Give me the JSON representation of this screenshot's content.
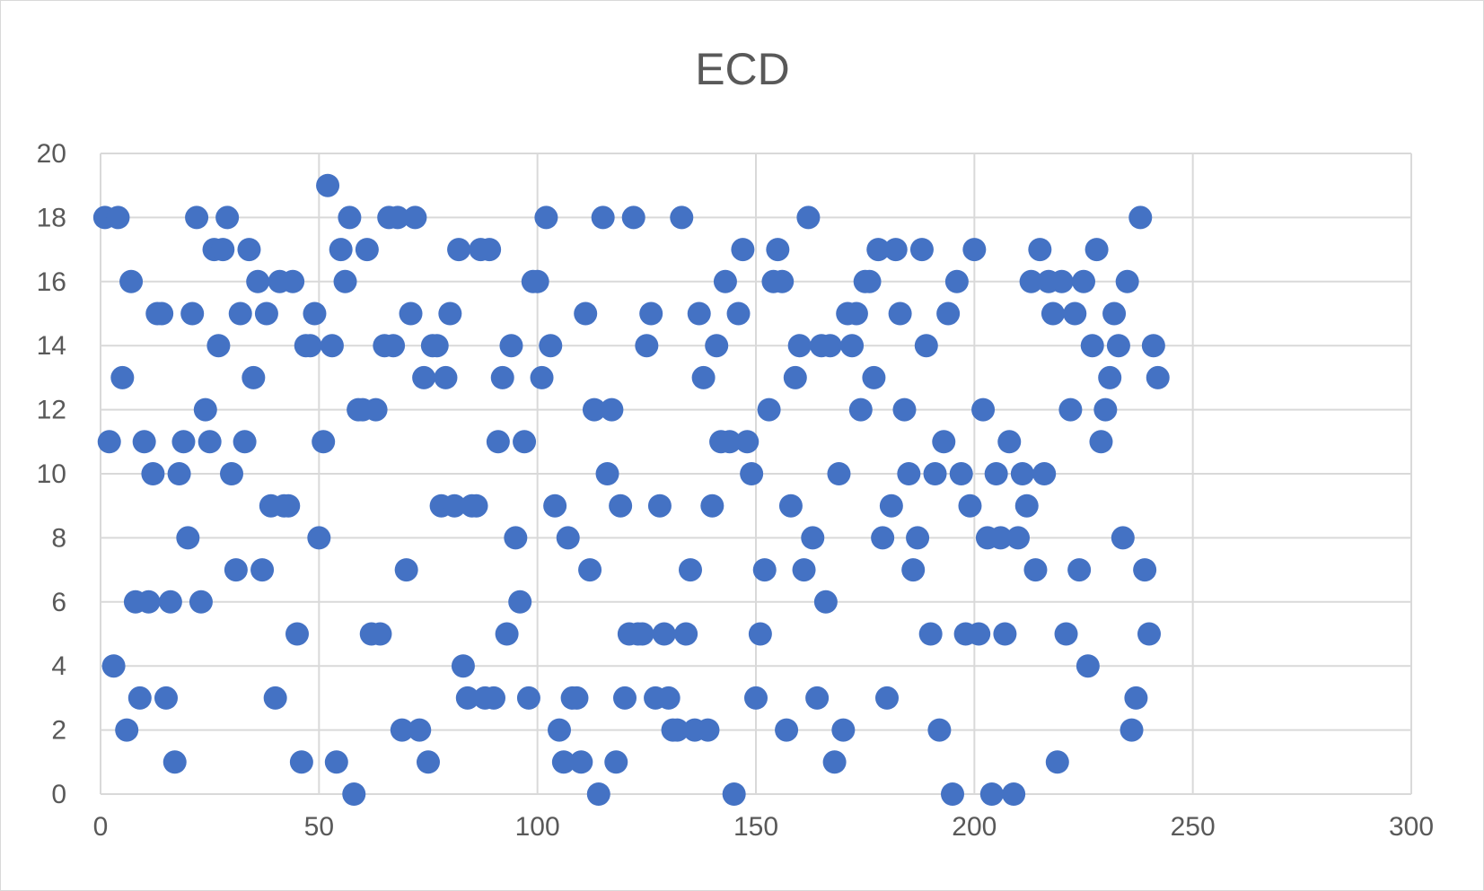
{
  "chart_data": {
    "type": "scatter",
    "title": "ECD",
    "xlabel": "",
    "ylabel": "",
    "xlim": [
      0,
      300
    ],
    "ylim": [
      0,
      20
    ],
    "x_ticks": [
      "0",
      "50",
      "100",
      "150",
      "200",
      "250",
      "300"
    ],
    "y_ticks": [
      "0",
      "2",
      "4",
      "6",
      "8",
      "10",
      "12",
      "14",
      "16",
      "18",
      "20"
    ],
    "grid": true,
    "legend": "none",
    "marker_color": "#4472c4",
    "series": [
      {
        "x": [
          1,
          2,
          3,
          4,
          5,
          6,
          7,
          8,
          9,
          10,
          11,
          12,
          13,
          14,
          15,
          16,
          17,
          18,
          19,
          20,
          21,
          22,
          23,
          24,
          25,
          26,
          27,
          28,
          29,
          30,
          31,
          32,
          33,
          34,
          35,
          36,
          37,
          38,
          39,
          40,
          41,
          42,
          43,
          44,
          45,
          46,
          47,
          48,
          49,
          50,
          51,
          52,
          53,
          54,
          55,
          56,
          57,
          58,
          59,
          60,
          61,
          62,
          63,
          64,
          65,
          66,
          67,
          68,
          69,
          70,
          71,
          72,
          73,
          74,
          75,
          76,
          77,
          78,
          79,
          80,
          81,
          82,
          83,
          84,
          85,
          86,
          87,
          88,
          89,
          90,
          91,
          92,
          93,
          94,
          95,
          96,
          97,
          98,
          99,
          100,
          101,
          102,
          103,
          104,
          105,
          106,
          107,
          108,
          109,
          110,
          111,
          112,
          113,
          114,
          115,
          116,
          117,
          118,
          119,
          120,
          121,
          122,
          123,
          124,
          125,
          126,
          127,
          128,
          129,
          130,
          131,
          132,
          133,
          134,
          135,
          136,
          137,
          138,
          139,
          140,
          141,
          142,
          143,
          144,
          145,
          146,
          147,
          148,
          149,
          150,
          151,
          152,
          153,
          154,
          155,
          156,
          157,
          158,
          159,
          160,
          161,
          162,
          163,
          164,
          165,
          166,
          167,
          168,
          169,
          170,
          171,
          172,
          173,
          174,
          175,
          176,
          177,
          178,
          179,
          180,
          181,
          182,
          183,
          184,
          185,
          186,
          187,
          188,
          189,
          190,
          191,
          192,
          193,
          194,
          195,
          196,
          197,
          198,
          199,
          200,
          201,
          202,
          203,
          204,
          205,
          206,
          207,
          208,
          209,
          210,
          211,
          212,
          213,
          214,
          215,
          216,
          217,
          218,
          219,
          220,
          221,
          222,
          223,
          224,
          225,
          226,
          227,
          228,
          229,
          230,
          231,
          232,
          233,
          234,
          235,
          236,
          237,
          238,
          239,
          240,
          241,
          242
        ],
        "y": [
          18,
          11,
          4,
          18,
          13,
          2,
          16,
          6,
          3,
          11,
          6,
          10,
          15,
          15,
          3,
          6,
          1,
          10,
          11,
          8,
          15,
          18,
          6,
          12,
          11,
          17,
          14,
          17,
          18,
          10,
          7,
          15,
          11,
          17,
          13,
          16,
          7,
          15,
          9,
          3,
          16,
          9,
          9,
          16,
          5,
          1,
          14,
          14,
          15,
          8,
          11,
          19,
          14,
          1,
          17,
          16,
          18,
          0,
          12,
          12,
          17,
          5,
          12,
          5,
          14,
          18,
          14,
          18,
          2,
          7,
          15,
          18,
          2,
          13,
          1,
          14,
          14,
          9,
          13,
          15,
          9,
          17,
          4,
          3,
          9,
          9,
          17,
          3,
          17,
          3,
          11,
          13,
          5,
          14,
          8,
          6,
          11,
          3,
          16,
          16,
          13,
          18,
          14,
          9,
          2,
          1,
          8,
          3,
          3,
          1,
          15,
          7,
          12,
          0,
          18,
          10,
          12,
          1,
          9,
          3,
          5,
          18,
          5,
          5,
          14,
          15,
          3,
          9,
          5,
          3,
          2,
          2,
          18,
          5,
          7,
          2,
          15,
          13,
          2,
          9,
          14,
          11,
          16,
          11,
          0,
          15,
          17,
          11,
          10,
          3,
          5,
          7,
          12,
          16,
          17,
          16,
          2,
          9,
          13,
          14,
          7,
          18,
          8,
          3,
          14,
          6,
          14,
          1,
          10,
          2,
          15,
          14,
          15,
          12,
          16,
          16,
          13,
          17,
          8,
          3,
          9,
          17,
          15,
          12,
          10,
          7,
          8,
          17,
          14,
          5,
          10,
          2,
          11,
          15,
          0,
          16,
          10,
          5,
          9,
          17,
          5,
          12,
          8,
          0,
          10,
          8,
          5,
          11,
          0,
          8,
          10,
          9,
          16,
          7,
          17,
          10,
          16,
          15,
          1,
          16,
          5,
          12,
          15,
          7,
          16,
          4,
          14,
          17,
          11,
          12,
          13,
          15,
          14,
          8,
          16,
          2,
          3,
          18,
          7,
          5,
          14,
          13
        ]
      }
    ]
  }
}
